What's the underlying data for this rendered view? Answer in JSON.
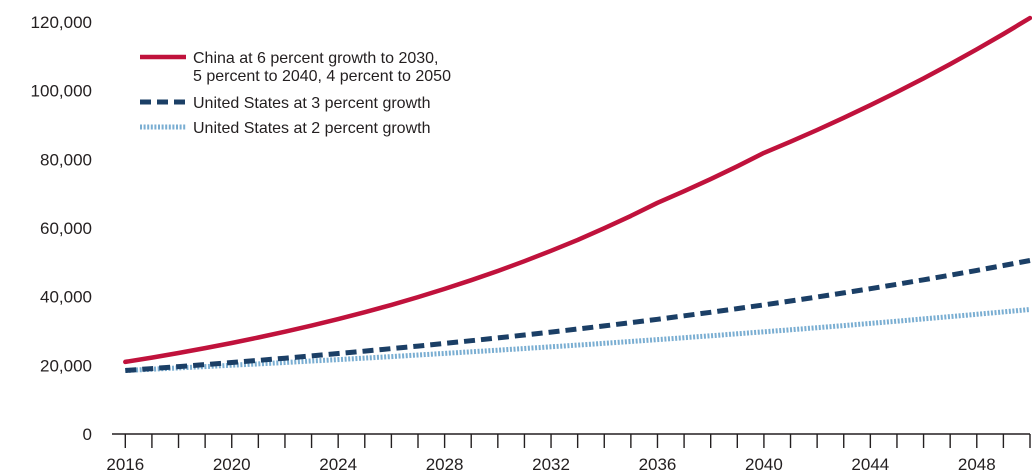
{
  "chart_data": {
    "type": "line",
    "title": "",
    "xlabel": "",
    "ylabel": "",
    "x": [
      2016,
      2017,
      2018,
      2019,
      2020,
      2021,
      2022,
      2023,
      2024,
      2025,
      2026,
      2027,
      2028,
      2029,
      2030,
      2031,
      2032,
      2033,
      2034,
      2035,
      2036,
      2037,
      2038,
      2039,
      2040,
      2041,
      2042,
      2043,
      2044,
      2045,
      2046,
      2047,
      2048,
      2049,
      2050
    ],
    "xlim": [
      2015.5,
      2050
    ],
    "ylim": [
      0,
      120000
    ],
    "yticks": [
      0,
      20000,
      40000,
      60000,
      80000,
      100000,
      120000
    ],
    "ytick_labels": [
      "0",
      "20,000",
      "40,000",
      "60,000",
      "80,000",
      "100,000",
      "120,000"
    ],
    "xtick_labels": [
      {
        "value": 2016,
        "label": "2016"
      },
      {
        "value": 2020,
        "label": "2020"
      },
      {
        "value": 2024,
        "label": "2024"
      },
      {
        "value": 2028,
        "label": "2028"
      },
      {
        "value": 2032,
        "label": "2032"
      },
      {
        "value": 2036,
        "label": "2036"
      },
      {
        "value": 2040,
        "label": "2040"
      },
      {
        "value": 2044,
        "label": "2044"
      },
      {
        "value": 2048,
        "label": "2048"
      }
    ],
    "grid": false,
    "legend_position": "top-left",
    "series": [
      {
        "name": "China at 6 percent growth to 2030,",
        "name_line2": "5 percent to 2040, 4 percent to 2050",
        "style": "solid",
        "color": "#c0123c",
        "values": [
          21000,
          22260,
          23596,
          25011,
          26512,
          28103,
          29789,
          31576,
          33471,
          35479,
          37608,
          39864,
          42256,
          44791,
          47479,
          50327,
          53347,
          56548,
          59941,
          63537,
          67350,
          70717,
          74253,
          77966,
          81864,
          85139,
          88544,
          92086,
          95769,
          99600,
          103584,
          107728,
          112037,
          116518,
          121179
        ]
      },
      {
        "name": "United States at 3 percent growth",
        "style": "dashed",
        "color": "#1b3f66",
        "values": [
          18500,
          19055,
          19627,
          20215,
          20822,
          21446,
          22090,
          22752,
          23435,
          24138,
          24862,
          25608,
          26376,
          27168,
          27983,
          28822,
          29687,
          30577,
          31495,
          32439,
          33413,
          34415,
          35448,
          36511,
          37606,
          38734,
          39896,
          41093,
          42326,
          43596,
          44904,
          46251,
          47639,
          49068,
          50540
        ]
      },
      {
        "name": "United States at 2 percent growth",
        "style": "dotted",
        "color": "#7aaed2",
        "values": [
          18500,
          18870,
          19247,
          19632,
          20025,
          20426,
          20834,
          21251,
          21676,
          22109,
          22552,
          23003,
          23463,
          23932,
          24411,
          24899,
          25397,
          25905,
          26423,
          26951,
          27490,
          28040,
          28601,
          29173,
          29757,
          30352,
          30959,
          31578,
          32210,
          32854,
          33511,
          34181,
          34865,
          35562,
          36273
        ]
      }
    ]
  }
}
